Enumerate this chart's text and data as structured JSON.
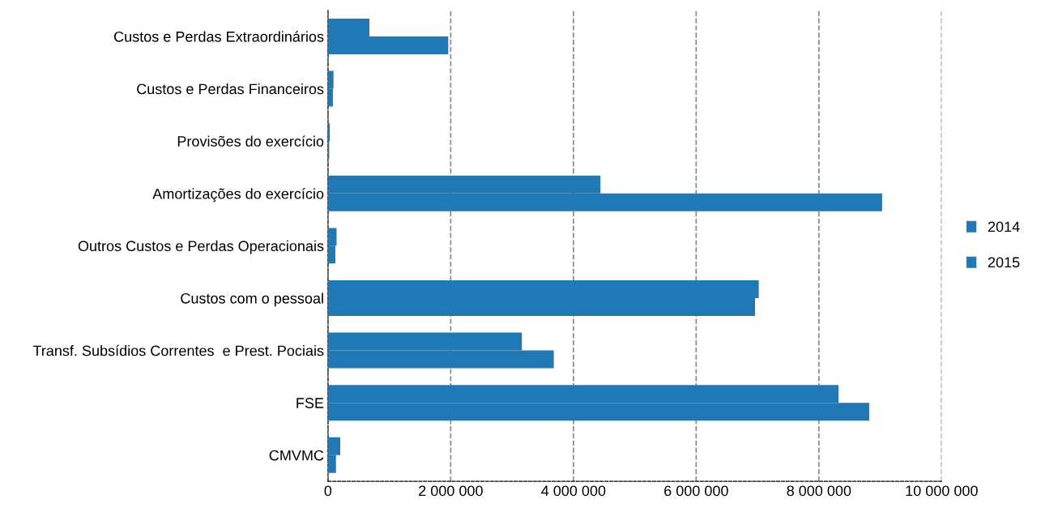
{
  "chart_data": {
    "type": "bar",
    "orientation": "horizontal",
    "categories": [
      "Custos e Perdas Extraordinários",
      "Custos e Perdas Financeiros",
      "Provisões do exercício",
      "Amortizações do exercício",
      "Outros Custos e Perdas Operacionais",
      "Custos com o pessoal",
      "Transf. Subsídios Correntes  e Prest. Pociais",
      "FSE",
      "CMVMC"
    ],
    "series": [
      {
        "name": "2014",
        "color": "#2078b4",
        "values": [
          675000,
          90000,
          30000,
          4440000,
          140000,
          7020000,
          3160000,
          8320000,
          200000
        ]
      },
      {
        "name": "2015",
        "color": "#2078b4",
        "values": [
          1960000,
          80000,
          20000,
          9030000,
          120000,
          6960000,
          3680000,
          8820000,
          130000
        ]
      }
    ],
    "xlim": [
      0,
      10000000
    ],
    "xticks": [
      {
        "value": 0,
        "label": "0"
      },
      {
        "value": 2000000,
        "label": "2 000 000"
      },
      {
        "value": 4000000,
        "label": "4 000 000"
      },
      {
        "value": 6000000,
        "label": "6 000 000"
      },
      {
        "value": 8000000,
        "label": "8 000 000"
      },
      {
        "value": 10000000,
        "label": "10 000 000"
      }
    ],
    "grid": "x",
    "legend": "right"
  }
}
